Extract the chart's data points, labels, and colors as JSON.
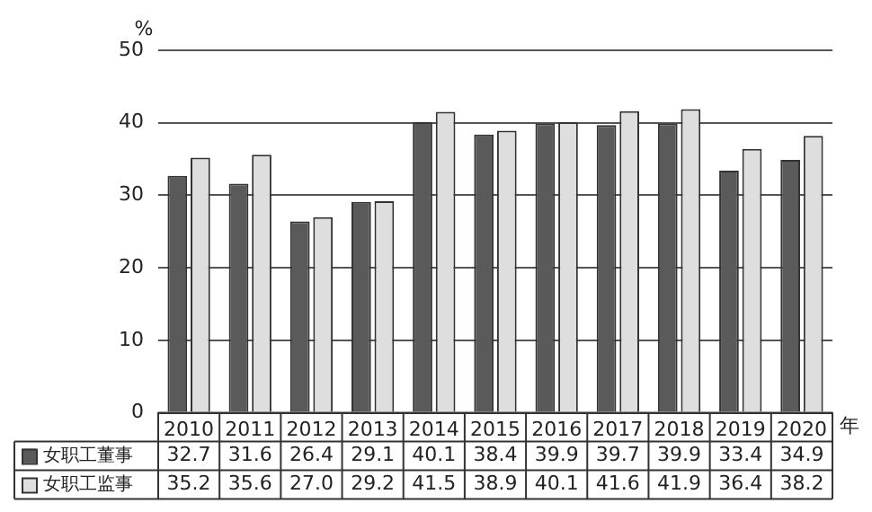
{
  "chart_data": {
    "type": "bar",
    "ylabel": "%",
    "xlabel": "年",
    "categories": [
      "2010",
      "2011",
      "2012",
      "2013",
      "2014",
      "2015",
      "2016",
      "2017",
      "2018",
      "2019",
      "2020"
    ],
    "series": [
      {
        "name": "女职工董事",
        "color": "#5a5a5a",
        "values": [
          32.7,
          31.6,
          26.4,
          29.1,
          40.1,
          38.4,
          39.9,
          39.7,
          39.9,
          33.4,
          34.9
        ],
        "value_labels": [
          "32.7",
          "31.6",
          "26.4",
          "29.1",
          "40.1",
          "38.4",
          "39.9",
          "39.7",
          "39.9",
          "33.4",
          "34.9"
        ]
      },
      {
        "name": "女职工监事",
        "color": "#dedede",
        "values": [
          35.2,
          35.6,
          27.0,
          29.2,
          41.5,
          38.9,
          40.1,
          41.6,
          41.9,
          36.4,
          38.2
        ],
        "value_labels": [
          "35.2",
          "35.6",
          "27.0",
          "29.2",
          "41.5",
          "38.9",
          "40.1",
          "41.6",
          "41.9",
          "36.4",
          "38.2"
        ]
      }
    ],
    "ylim": [
      0,
      50
    ],
    "yticks": [
      0,
      10,
      20,
      30,
      40,
      50
    ],
    "grid": "y",
    "legend": "bottom left"
  }
}
